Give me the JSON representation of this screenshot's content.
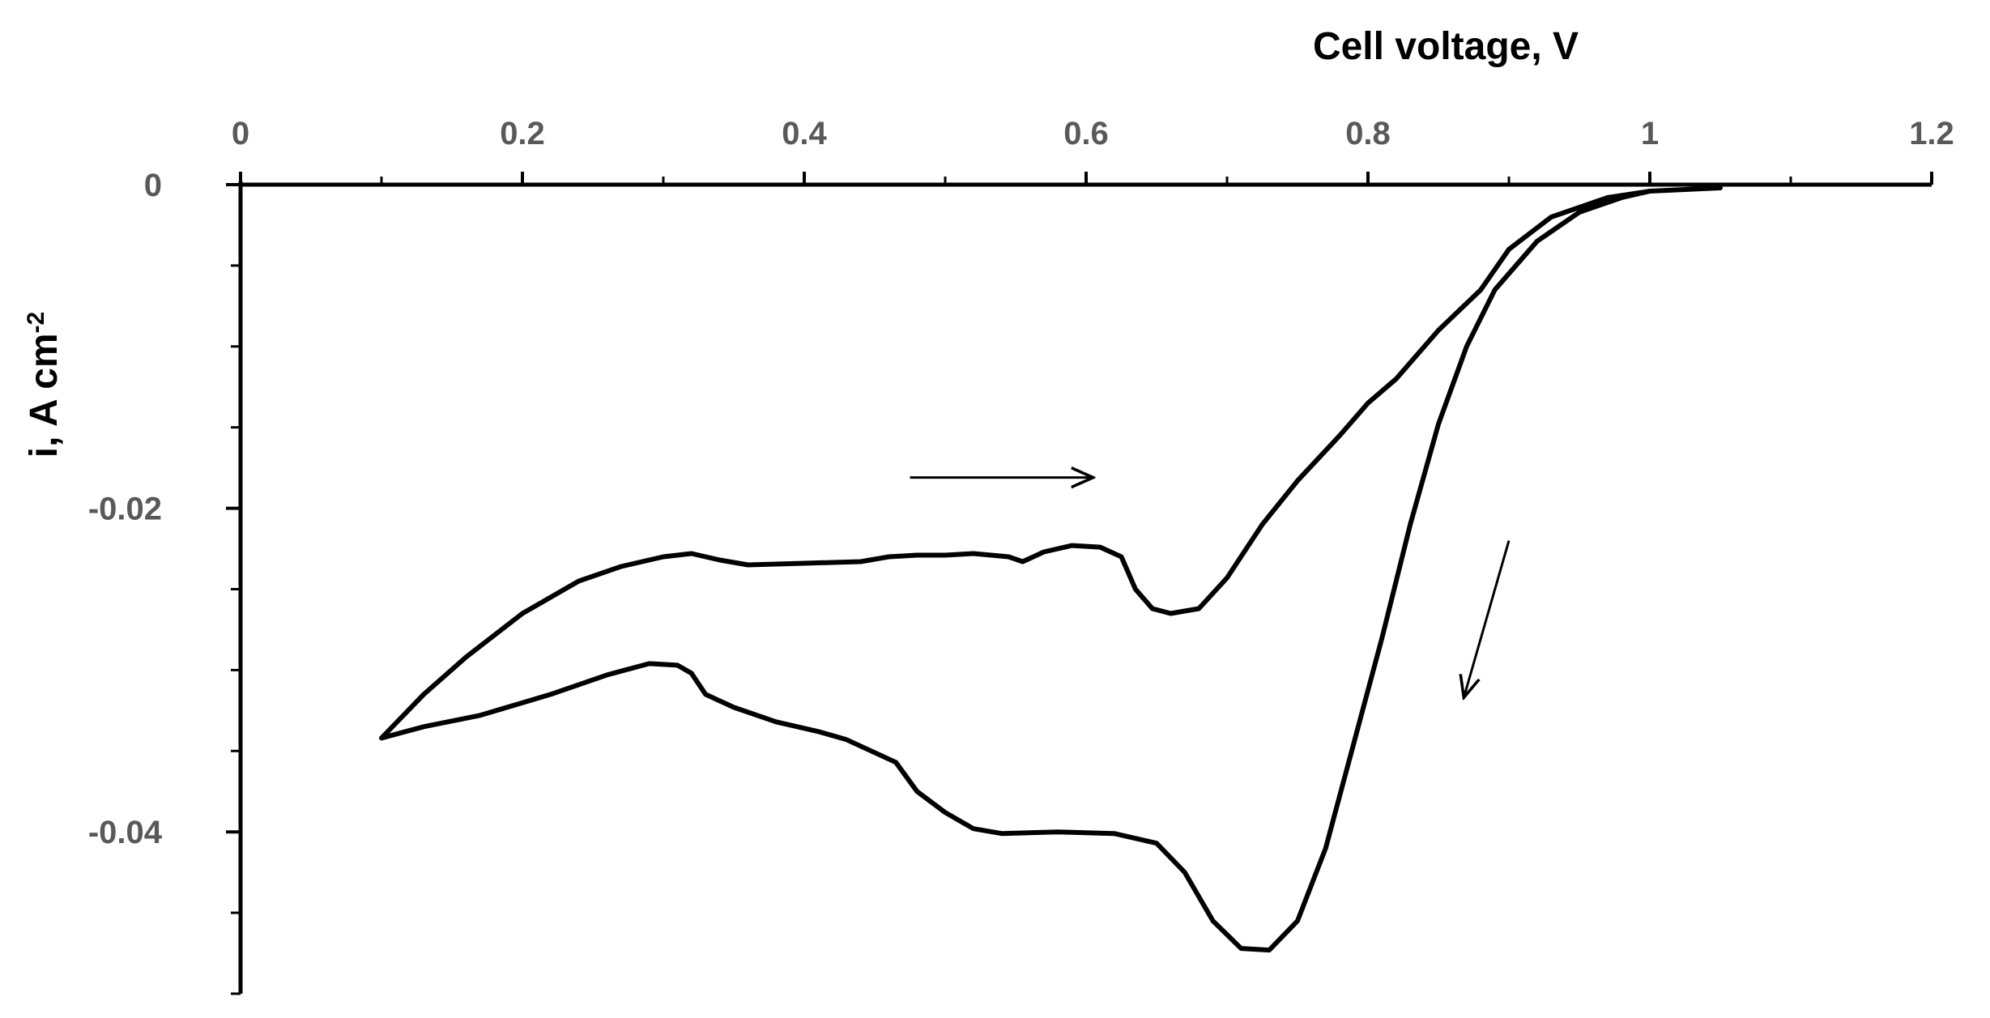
{
  "chart_data": {
    "type": "line",
    "xlabel": "Cell voltage, V",
    "ylabel_main": "i, A cm",
    "ylabel_sup": "-2",
    "xlim": [
      0,
      1.2
    ],
    "ylim": [
      -0.05,
      0
    ],
    "x_ticks": [
      0,
      0.2,
      0.4,
      0.6,
      0.8,
      1,
      1.2
    ],
    "x_tick_labels": [
      "0",
      "0.2",
      "0.4",
      "0.6",
      "0.8",
      "1",
      "1.2"
    ],
    "y_ticks": [
      0,
      -0.02,
      -0.04
    ],
    "y_tick_labels": [
      "0",
      "-0.02",
      "-0.04"
    ],
    "x_minor_step": 0.1,
    "y_minor_step": 0.005,
    "grid": false,
    "legend": "none",
    "line_color": "#000000",
    "series": [
      {
        "points": [
          [
            1.05,
            -0.0002
          ],
          [
            1.0,
            -0.0004
          ],
          [
            0.97,
            -0.0008
          ],
          [
            0.93,
            -0.002
          ],
          [
            0.9,
            -0.004
          ],
          [
            0.88,
            -0.0065
          ],
          [
            0.85,
            -0.009
          ],
          [
            0.82,
            -0.012
          ],
          [
            0.8,
            -0.0135
          ],
          [
            0.78,
            -0.0155
          ],
          [
            0.75,
            -0.0183
          ],
          [
            0.725,
            -0.021
          ],
          [
            0.7,
            -0.0243
          ],
          [
            0.68,
            -0.0262
          ],
          [
            0.66,
            -0.0265
          ],
          [
            0.647,
            -0.0262
          ],
          [
            0.635,
            -0.025
          ],
          [
            0.625,
            -0.023
          ],
          [
            0.61,
            -0.0224
          ],
          [
            0.59,
            -0.0223
          ],
          [
            0.57,
            -0.0227
          ],
          [
            0.555,
            -0.0233
          ],
          [
            0.545,
            -0.023
          ],
          [
            0.52,
            -0.0228
          ],
          [
            0.5,
            -0.0229
          ],
          [
            0.48,
            -0.0229
          ],
          [
            0.46,
            -0.023
          ],
          [
            0.44,
            -0.0233
          ],
          [
            0.4,
            -0.0234
          ],
          [
            0.36,
            -0.0235
          ],
          [
            0.34,
            -0.0232
          ],
          [
            0.32,
            -0.0228
          ],
          [
            0.3,
            -0.023
          ],
          [
            0.27,
            -0.0236
          ],
          [
            0.24,
            -0.0245
          ],
          [
            0.2,
            -0.0265
          ],
          [
            0.16,
            -0.0292
          ],
          [
            0.13,
            -0.0315
          ],
          [
            0.11,
            -0.0333
          ],
          [
            0.1,
            -0.0342
          ],
          [
            0.13,
            -0.0335
          ],
          [
            0.17,
            -0.0328
          ],
          [
            0.22,
            -0.0315
          ],
          [
            0.26,
            -0.0303
          ],
          [
            0.29,
            -0.0296
          ],
          [
            0.31,
            -0.0297
          ],
          [
            0.32,
            -0.0302
          ],
          [
            0.33,
            -0.0315
          ],
          [
            0.35,
            -0.0323
          ],
          [
            0.38,
            -0.0332
          ],
          [
            0.41,
            -0.0338
          ],
          [
            0.43,
            -0.0343
          ],
          [
            0.45,
            -0.0351
          ],
          [
            0.465,
            -0.0357
          ],
          [
            0.48,
            -0.0375
          ],
          [
            0.5,
            -0.0388
          ],
          [
            0.52,
            -0.0398
          ],
          [
            0.54,
            -0.0401
          ],
          [
            0.58,
            -0.04
          ],
          [
            0.62,
            -0.0401
          ],
          [
            0.65,
            -0.0407
          ],
          [
            0.67,
            -0.0425
          ],
          [
            0.69,
            -0.0455
          ],
          [
            0.71,
            -0.0472
          ],
          [
            0.73,
            -0.0473
          ],
          [
            0.75,
            -0.0455
          ],
          [
            0.77,
            -0.041
          ],
          [
            0.79,
            -0.0345
          ],
          [
            0.81,
            -0.028
          ],
          [
            0.83,
            -0.021
          ],
          [
            0.85,
            -0.0148
          ],
          [
            0.87,
            -0.01
          ],
          [
            0.89,
            -0.0065
          ],
          [
            0.92,
            -0.0035
          ],
          [
            0.95,
            -0.0017
          ],
          [
            0.98,
            -0.0008
          ],
          [
            1.0,
            -0.0004
          ],
          [
            1.05,
            -0.0002
          ]
        ]
      }
    ],
    "arrows": [
      {
        "direction": "right",
        "from": [
          0.475,
          -0.0181
        ],
        "to": [
          0.605,
          -0.0181
        ]
      },
      {
        "direction": "down-left",
        "from": [
          0.9,
          -0.022
        ],
        "to": [
          0.868,
          -0.0317
        ]
      }
    ]
  }
}
